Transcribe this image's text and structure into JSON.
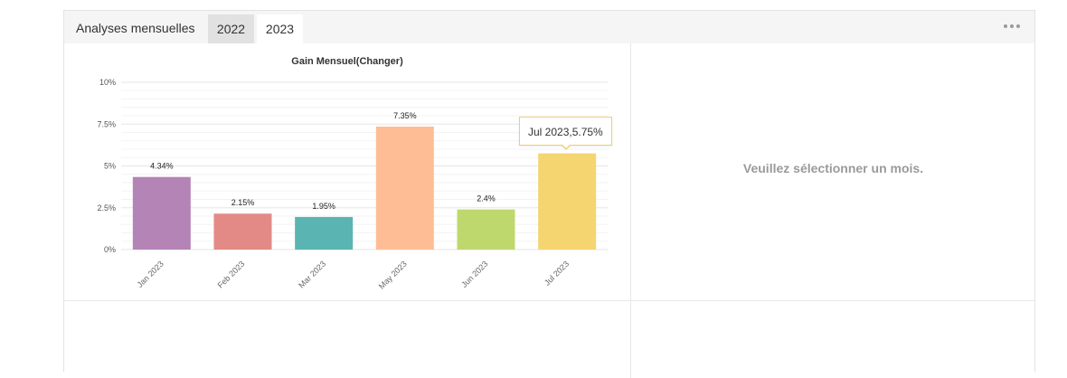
{
  "panel": {
    "title": "Analyses mensuelles",
    "tabs": [
      {
        "label": "2022",
        "active": true
      },
      {
        "label": "2023",
        "active": false
      }
    ],
    "menu_icon": "more-horizontal-icon",
    "empty_message": "Veuillez sélectionner un mois."
  },
  "tooltip": {
    "text": "Jul 2023,5.75%",
    "border_color": "#f0cf72"
  },
  "chart_data": {
    "type": "bar",
    "title": "Gain Mensuel(Changer)",
    "xlabel": "",
    "ylabel": "",
    "ylim": [
      0,
      10
    ],
    "y_ticks": [
      "0%",
      "2.5%",
      "5%",
      "7.5%",
      "10%"
    ],
    "y_tick_values": [
      0,
      2.5,
      5,
      7.5,
      10
    ],
    "categories": [
      "Jan 2023",
      "Feb 2023",
      "Mar 2023",
      "May 2023",
      "Jun 2023",
      "Jul 2023"
    ],
    "values": [
      4.34,
      2.15,
      1.95,
      7.35,
      2.4,
      5.75
    ],
    "data_labels": [
      "4.34%",
      "2.15%",
      "1.95%",
      "7.35%",
      "2.4%",
      ""
    ],
    "colors": [
      "#b384b5",
      "#e38a87",
      "#5ab4b2",
      "#ffbd95",
      "#bfd86d",
      "#f5d570"
    ],
    "grid": true,
    "legend": "none"
  }
}
